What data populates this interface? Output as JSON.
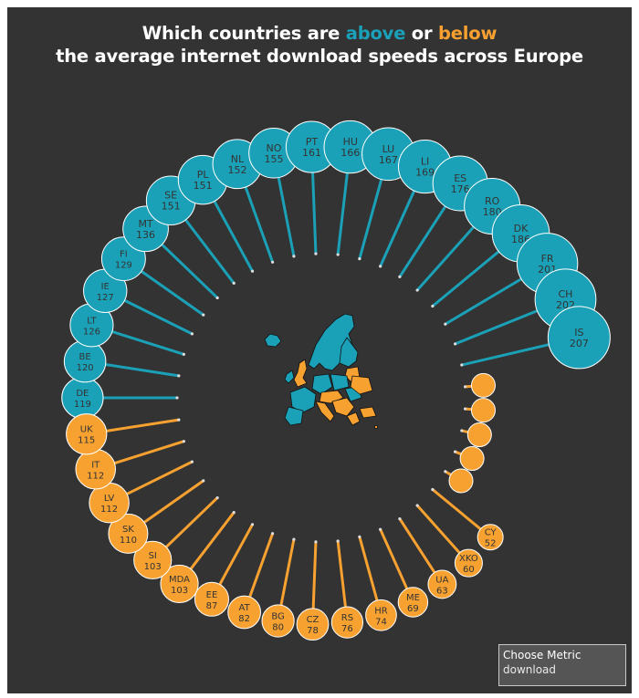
{
  "title": {
    "part1": "Which countries are ",
    "above": "above",
    "part2": " or ",
    "below": "below",
    "line2": "the average internet download speeds across Europe"
  },
  "colors": {
    "above": "#1ba1b7",
    "below": "#f7a131",
    "background": "#333333",
    "map_outline": "#111111"
  },
  "control": {
    "label": "Choose Metric",
    "value": "download"
  },
  "chart_data": {
    "type": "radial-lollipop",
    "title": "Which countries are above or below the average internet download speeds across Europe",
    "metric": "download",
    "countries": [
      {
        "code": "DE",
        "value": 119,
        "group": "above"
      },
      {
        "code": "BE",
        "value": 120,
        "group": "above"
      },
      {
        "code": "LT",
        "value": 126,
        "group": "above"
      },
      {
        "code": "IE",
        "value": 127,
        "group": "above"
      },
      {
        "code": "FI",
        "value": 129,
        "group": "above"
      },
      {
        "code": "MT",
        "value": 136,
        "group": "above"
      },
      {
        "code": "SE",
        "value": 151,
        "group": "above"
      },
      {
        "code": "PL",
        "value": 151,
        "group": "above"
      },
      {
        "code": "NL",
        "value": 152,
        "group": "above"
      },
      {
        "code": "NO",
        "value": 155,
        "group": "above"
      },
      {
        "code": "PT",
        "value": 161,
        "group": "above"
      },
      {
        "code": "HU",
        "value": 166,
        "group": "above"
      },
      {
        "code": "LU",
        "value": 167,
        "group": "above"
      },
      {
        "code": "LI",
        "value": 169,
        "group": "above"
      },
      {
        "code": "ES",
        "value": 176,
        "group": "above"
      },
      {
        "code": "RO",
        "value": 180,
        "group": "above"
      },
      {
        "code": "DK",
        "value": 186,
        "group": "above"
      },
      {
        "code": "FR",
        "value": 201,
        "group": "above"
      },
      {
        "code": "CH",
        "value": 202,
        "group": "above"
      },
      {
        "code": "IS",
        "value": 207,
        "group": "above"
      },
      {
        "code": "",
        "value": null,
        "group": "below"
      },
      {
        "code": "",
        "value": null,
        "group": "below"
      },
      {
        "code": "",
        "value": null,
        "group": "below"
      },
      {
        "code": "",
        "value": null,
        "group": "below"
      },
      {
        "code": "",
        "value": null,
        "group": "below"
      },
      {
        "code": "CY",
        "value": 52,
        "group": "below"
      },
      {
        "code": "XKO",
        "value": 60,
        "group": "below"
      },
      {
        "code": "UA",
        "value": 63,
        "group": "below"
      },
      {
        "code": "ME",
        "value": 69,
        "group": "below"
      },
      {
        "code": "HR",
        "value": 74,
        "group": "below"
      },
      {
        "code": "RS",
        "value": 76,
        "group": "below"
      },
      {
        "code": "CZ",
        "value": 78,
        "group": "below"
      },
      {
        "code": "BG",
        "value": 80,
        "group": "below"
      },
      {
        "code": "AT",
        "value": 82,
        "group": "below"
      },
      {
        "code": "EE",
        "value": 87,
        "group": "below"
      },
      {
        "code": "MDA",
        "value": 103,
        "group": "below"
      },
      {
        "code": "SI",
        "value": 103,
        "group": "below"
      },
      {
        "code": "SK",
        "value": 110,
        "group": "below"
      },
      {
        "code": "LV",
        "value": 112,
        "group": "below"
      },
      {
        "code": "IT",
        "value": 112,
        "group": "below"
      },
      {
        "code": "UK",
        "value": 115,
        "group": "below"
      }
    ]
  }
}
